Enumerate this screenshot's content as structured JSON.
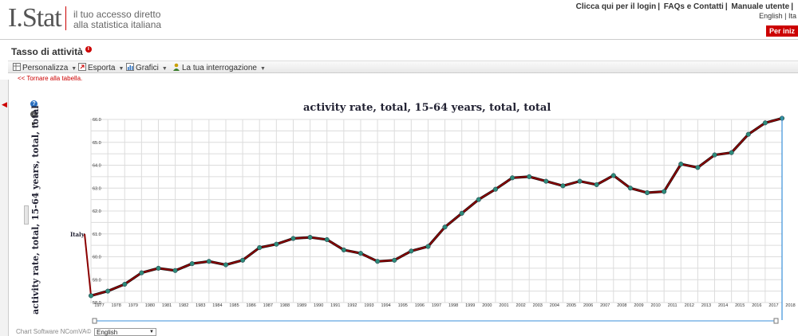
{
  "header": {
    "logo": "I.Stat",
    "tagline_line1": "il tuo accesso diretto",
    "tagline_line2": "alla statistica italiana",
    "link_login": "Clicca qui per il login",
    "link_faq": "FAQs e Contatti",
    "link_manual": "Manuale utente",
    "lang_en": "English",
    "lang_it": "Ita",
    "start_button": "Per iniz"
  },
  "page": {
    "title": "Tasso di attività",
    "back_link": "<< Tornare alla tabella."
  },
  "toolbar": {
    "customize": "Personalizza",
    "export": "Esporta",
    "charts": "Grafici",
    "query": "La tua interrogazione"
  },
  "footer": {
    "software": "Chart Software NComVA©",
    "language": "English"
  },
  "colors": {
    "line": "#8b0000",
    "marker": "#2e8b7a",
    "accent": "#cc0000",
    "cursor": "#3a8fd9"
  },
  "chart_data": {
    "type": "line",
    "title": "activity rate, total, 15-64 years, total, total",
    "ylabel": "activity rate, total, 15-64 years, total, total",
    "xlabel": "",
    "ylim": [
      58.0,
      66.0
    ],
    "y_ticks": [
      "58.0",
      "59.0",
      "60.0",
      "61.0",
      "62.0",
      "63.0",
      "64.0",
      "65.0",
      "66.0"
    ],
    "categories": [
      "1977",
      "1978",
      "1979",
      "1980",
      "1981",
      "1982",
      "1983",
      "1984",
      "1985",
      "1986",
      "1987",
      "1988",
      "1989",
      "1990",
      "1991",
      "1992",
      "1993",
      "1994",
      "1995",
      "1996",
      "1997",
      "1998",
      "1999",
      "2000",
      "2001",
      "2002",
      "2003",
      "2004",
      "2005",
      "2006",
      "2007",
      "2008",
      "2009",
      "2010",
      "2011",
      "2012",
      "2013",
      "2014",
      "2015",
      "2016",
      "2017",
      "2018"
    ],
    "series": [
      {
        "name": "Italy",
        "values": [
          58.3,
          58.5,
          58.8,
          59.3,
          59.5,
          59.4,
          59.7,
          59.8,
          59.65,
          59.85,
          60.4,
          60.55,
          60.8,
          60.85,
          60.75,
          60.3,
          60.15,
          59.8,
          59.85,
          60.25,
          60.45,
          61.3,
          61.9,
          62.5,
          62.95,
          63.45,
          63.5,
          63.3,
          63.1,
          63.3,
          63.15,
          63.55,
          63.0,
          62.8,
          62.85,
          64.05,
          63.9,
          64.45,
          64.55,
          65.35,
          65.85,
          66.05
        ]
      }
    ],
    "grid": true,
    "legend": "left of first point",
    "series_label": "Italy"
  }
}
